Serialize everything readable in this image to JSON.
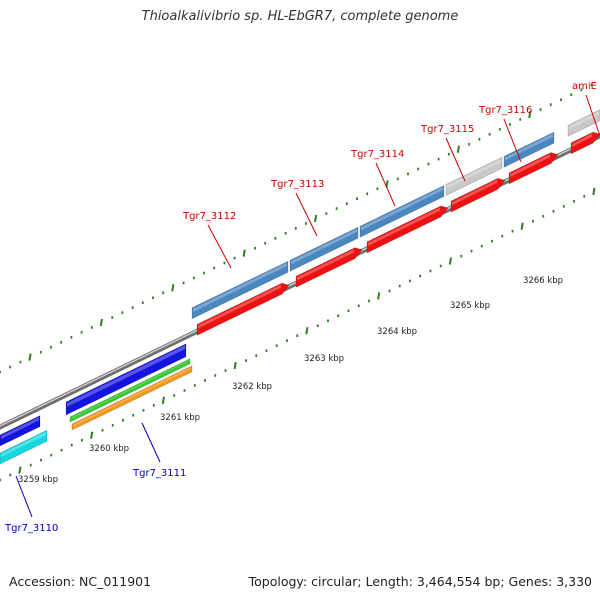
{
  "title": "Thioalkalivibrio sp. HL-EbGR7, complete genome",
  "accession": "Accession: NC_011901",
  "topology": "Topology: circular; Length: 3,464,554 bp; Genes: 3,330",
  "colors": {
    "backbone": "#8a8a8a",
    "tick_major": "#2e7d1f",
    "forward_gene": "#4a86c0",
    "forward_gene_light": "#c8c8c8",
    "cds": "#ee1111",
    "reverse_gene": "#1414e0",
    "reverse_cds": "#14d8e0",
    "green_track": "#33cc33",
    "orange_track": "#f59a1e",
    "label_forward": "#cc0000",
    "label_reverse": "#0000bb"
  },
  "scale": {
    "unit": "kbp",
    "ticks": [
      {
        "label": "3259 kbp",
        "kbp": 3259
      },
      {
        "label": "3260 kbp",
        "kbp": 3260
      },
      {
        "label": "3261 kbp",
        "kbp": 3261
      },
      {
        "label": "3262 kbp",
        "kbp": 3262
      },
      {
        "label": "3263 kbp",
        "kbp": 3263
      },
      {
        "label": "3264 kbp",
        "kbp": 3264
      },
      {
        "label": "3265 kbp",
        "kbp": 3265
      },
      {
        "label": "3266 kbp",
        "kbp": 3266
      }
    ]
  },
  "gene_labels": [
    {
      "name": "Tgr7_3110",
      "strand": "reverse"
    },
    {
      "name": "Tgr7_3111",
      "strand": "reverse"
    },
    {
      "name": "Tgr7_3112",
      "strand": "forward"
    },
    {
      "name": "Tgr7_3113",
      "strand": "forward"
    },
    {
      "name": "Tgr7_3114",
      "strand": "forward"
    },
    {
      "name": "Tgr7_3115",
      "strand": "forward"
    },
    {
      "name": "Tgr7_3116",
      "strand": "forward"
    },
    {
      "name": "amiE",
      "strand": "forward"
    }
  ]
}
